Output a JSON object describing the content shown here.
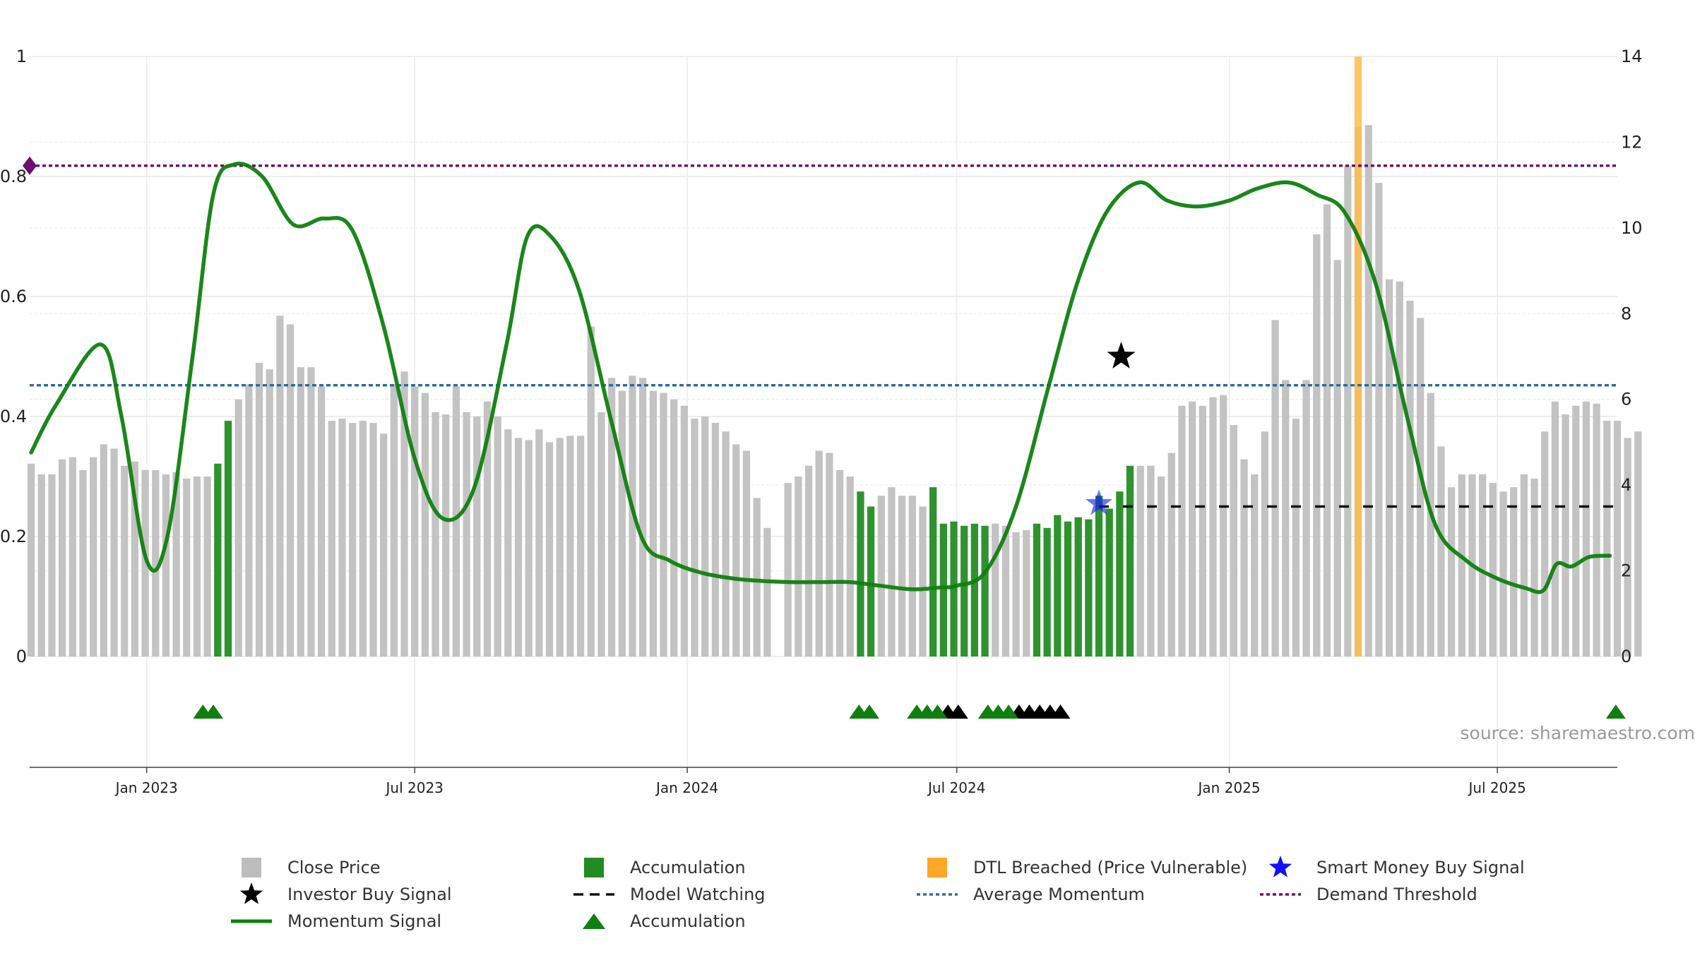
{
  "chart_data": {
    "type": "bar",
    "left_axis": {
      "range": [
        0,
        1
      ],
      "ticks": [
        0,
        0.2,
        0.4,
        0.6,
        0.8,
        1
      ],
      "tick_labels": [
        "0",
        "0.2",
        "0.4",
        "0.6",
        "0.8",
        "1"
      ]
    },
    "right_axis": {
      "range": [
        0,
        14
      ],
      "ticks": [
        0,
        2,
        4,
        6,
        8,
        10,
        12,
        14
      ],
      "tick_labels": [
        "0",
        "2",
        "4",
        "6",
        "8",
        "10",
        "12",
        "14"
      ]
    },
    "x_axis": {
      "range": [
        "2022-10-14",
        "2025-09-20"
      ],
      "ticks": [
        "2023-01-01",
        "2023-07-01",
        "2024-01-01",
        "2024-07-01",
        "2025-01-01",
        "2025-07-01"
      ],
      "tick_labels": [
        "Jan 2023",
        "Jul 2023",
        "Jan 2024",
        "Jul 2024",
        "Jan 2025",
        "Jul 2025"
      ]
    },
    "grid": true,
    "close_price": {
      "name": "Close Price",
      "color": "#c3c3c3",
      "start_date": "2022-10-15",
      "interval_days": 7,
      "values": [
        4.5,
        4.25,
        4.25,
        4.6,
        4.65,
        4.35,
        4.65,
        4.95,
        4.85,
        4.45,
        4.55,
        4.35,
        4.35,
        4.25,
        4.3,
        4.15,
        4.2,
        4.2,
        4.5,
        5.5,
        6.0,
        6.35,
        6.85,
        6.7,
        7.95,
        7.75,
        6.75,
        6.75,
        6.3,
        5.5,
        5.55,
        5.45,
        5.5,
        5.45,
        5.2,
        6.35,
        6.65,
        6.3,
        6.15,
        5.7,
        5.65,
        6.3,
        5.7,
        5.6,
        5.95,
        5.6,
        5.3,
        5.1,
        5.05,
        5.3,
        5.0,
        5.1,
        5.15,
        5.15,
        7.7,
        5.7,
        6.5,
        6.2,
        6.55,
        6.5,
        6.2,
        6.15,
        6.0,
        5.85,
        5.55,
        5.6,
        5.45,
        5.25,
        4.95,
        4.8,
        3.7,
        3.0,
        null,
        4.05,
        4.2,
        4.45,
        4.8,
        4.75,
        4.35,
        4.2,
        3.85,
        3.5,
        3.75,
        3.95,
        3.75,
        3.75,
        3.5,
        3.95,
        3.1,
        3.15,
        3.05,
        3.1,
        3.05,
        3.1,
        3.05,
        2.9,
        2.95,
        3.1,
        3.0,
        3.3,
        3.15,
        3.25,
        3.2,
        3.75,
        3.45,
        3.85,
        4.45,
        4.45,
        4.45,
        4.2,
        4.75,
        5.85,
        5.95,
        5.85,
        6.05,
        6.1,
        5.4,
        4.6,
        4.25,
        5.25,
        7.85,
        6.45,
        5.55,
        6.45,
        9.85,
        10.55,
        9.25,
        11.45,
        12.35,
        12.4,
        11.05,
        8.8,
        8.75,
        8.3,
        7.9,
        6.15,
        4.9,
        3.95,
        4.25,
        4.25,
        4.25,
        4.05,
        3.85,
        3.95,
        4.25,
        4.15,
        5.25,
        5.95,
        5.65,
        5.85,
        5.95,
        5.9,
        5.5,
        5.5,
        5.1,
        5.25
      ]
    },
    "accumulation_bars": {
      "name": "Accumulation",
      "color": "#2e932e",
      "indices": [
        18,
        19,
        80,
        81,
        87,
        88,
        89,
        90,
        91,
        92,
        97,
        98,
        99,
        100,
        101,
        102,
        103,
        104,
        105,
        106,
        156
      ]
    },
    "dtl_breached": {
      "name": "DTL Breached (Price Vulnerable)",
      "color": "#ffbc4d",
      "date": "2025-03-29",
      "value": 14.0
    },
    "momentum": {
      "name": "Momentum Signal",
      "color": "#0f7f0f",
      "x": [
        "2022-10-15",
        "2022-11-01",
        "2022-12-01",
        "2022-12-15",
        "2023-01-01",
        "2023-01-15",
        "2023-02-01",
        "2023-02-15",
        "2023-03-01",
        "2023-03-20",
        "2023-04-10",
        "2023-05-01",
        "2023-05-20",
        "2023-06-10",
        "2023-07-01",
        "2023-07-20",
        "2023-08-10",
        "2023-09-01",
        "2023-09-15",
        "2023-10-01",
        "2023-10-20",
        "2023-11-10",
        "2023-12-01",
        "2023-12-20",
        "2024-01-10",
        "2024-02-01",
        "2024-02-20",
        "2024-03-10",
        "2024-04-01",
        "2024-04-20",
        "2024-05-10",
        "2024-06-01",
        "2024-06-20",
        "2024-07-01",
        "2024-07-20",
        "2024-08-10",
        "2024-09-01",
        "2024-09-20",
        "2024-10-10",
        "2024-11-01",
        "2024-11-20",
        "2024-12-10",
        "2025-01-01",
        "2025-01-20",
        "2025-02-10",
        "2025-03-01",
        "2025-03-20",
        "2025-04-10",
        "2025-05-01",
        "2025-05-20",
        "2025-06-10",
        "2025-07-01",
        "2025-07-20",
        "2025-08-01",
        "2025-08-10",
        "2025-08-20",
        "2025-09-01",
        "2025-09-15"
      ],
      "y": [
        0.34,
        0.42,
        0.52,
        0.4,
        0.16,
        0.2,
        0.5,
        0.77,
        0.82,
        0.8,
        0.72,
        0.73,
        0.71,
        0.55,
        0.33,
        0.23,
        0.28,
        0.52,
        0.7,
        0.7,
        0.61,
        0.4,
        0.2,
        0.16,
        0.14,
        0.13,
        0.126,
        0.124,
        0.124,
        0.124,
        0.118,
        0.112,
        0.115,
        0.118,
        0.14,
        0.25,
        0.45,
        0.62,
        0.74,
        0.79,
        0.76,
        0.75,
        0.76,
        0.78,
        0.79,
        0.77,
        0.74,
        0.62,
        0.4,
        0.22,
        0.16,
        0.13,
        0.114,
        0.11,
        0.154,
        0.15,
        0.166,
        0.168
      ]
    },
    "average_momentum": {
      "name": "Average Momentum",
      "color": "#2b6ea3",
      "value": 0.452
    },
    "demand_threshold": {
      "name": "Demand Threshold",
      "color": "#6e0e6e",
      "value": 0.818
    },
    "model_watching": {
      "name": "Model Watching",
      "color": "#111111",
      "from": "2024-10-05",
      "to": "2025-09-20",
      "value": 0.25
    },
    "smart_money_buy": {
      "name": "Smart Money Buy Signal",
      "color": "#1010ff",
      "date": "2024-10-05",
      "value": 0.255
    },
    "investor_buy": {
      "name": "Investor Buy Signal",
      "color": "#000000",
      "date": "2024-10-20",
      "value": 0.5
    },
    "accumulation_markers": {
      "name": "Accumulation",
      "green_color": "#0f800f",
      "black_color": "#000000",
      "green_dates": [
        "2023-02-08",
        "2023-02-15",
        "2024-04-26",
        "2024-05-03",
        "2024-06-04",
        "2024-06-11",
        "2024-06-18",
        "2024-07-22",
        "2024-07-29",
        "2024-08-05",
        "2025-09-19"
      ],
      "black_dates": [
        "2024-06-25",
        "2024-07-02",
        "2024-08-12",
        "2024-08-19",
        "2024-08-26",
        "2024-09-02",
        "2024-09-09"
      ]
    },
    "annotation": "source: sharemaestro.com",
    "legend": [
      {
        "kind": "square",
        "color": "#bdbdbd",
        "label": "Close Price"
      },
      {
        "kind": "star",
        "color": "#000000",
        "label": "Investor Buy Signal"
      },
      {
        "kind": "line",
        "color": "#0f7f0f",
        "label": "Momentum Signal"
      },
      {
        "kind": "square",
        "color": "#228b22",
        "label": "Accumulation"
      },
      {
        "kind": "dash",
        "color": "#111111",
        "label": "Model Watching"
      },
      {
        "kind": "triangle",
        "color": "#0f800f",
        "label": "Accumulation"
      },
      {
        "kind": "square",
        "color": "#ffa726",
        "label": "DTL Breached (Price Vulnerable)"
      },
      {
        "kind": "dotted",
        "color": "#2b6ea3",
        "label": "Average Momentum"
      },
      {
        "kind": "star",
        "color": "#1010ff",
        "label": "Smart Money Buy Signal"
      },
      {
        "kind": "dotted-purple",
        "color": "#6e0e6e",
        "label": "Demand Threshold"
      }
    ]
  }
}
